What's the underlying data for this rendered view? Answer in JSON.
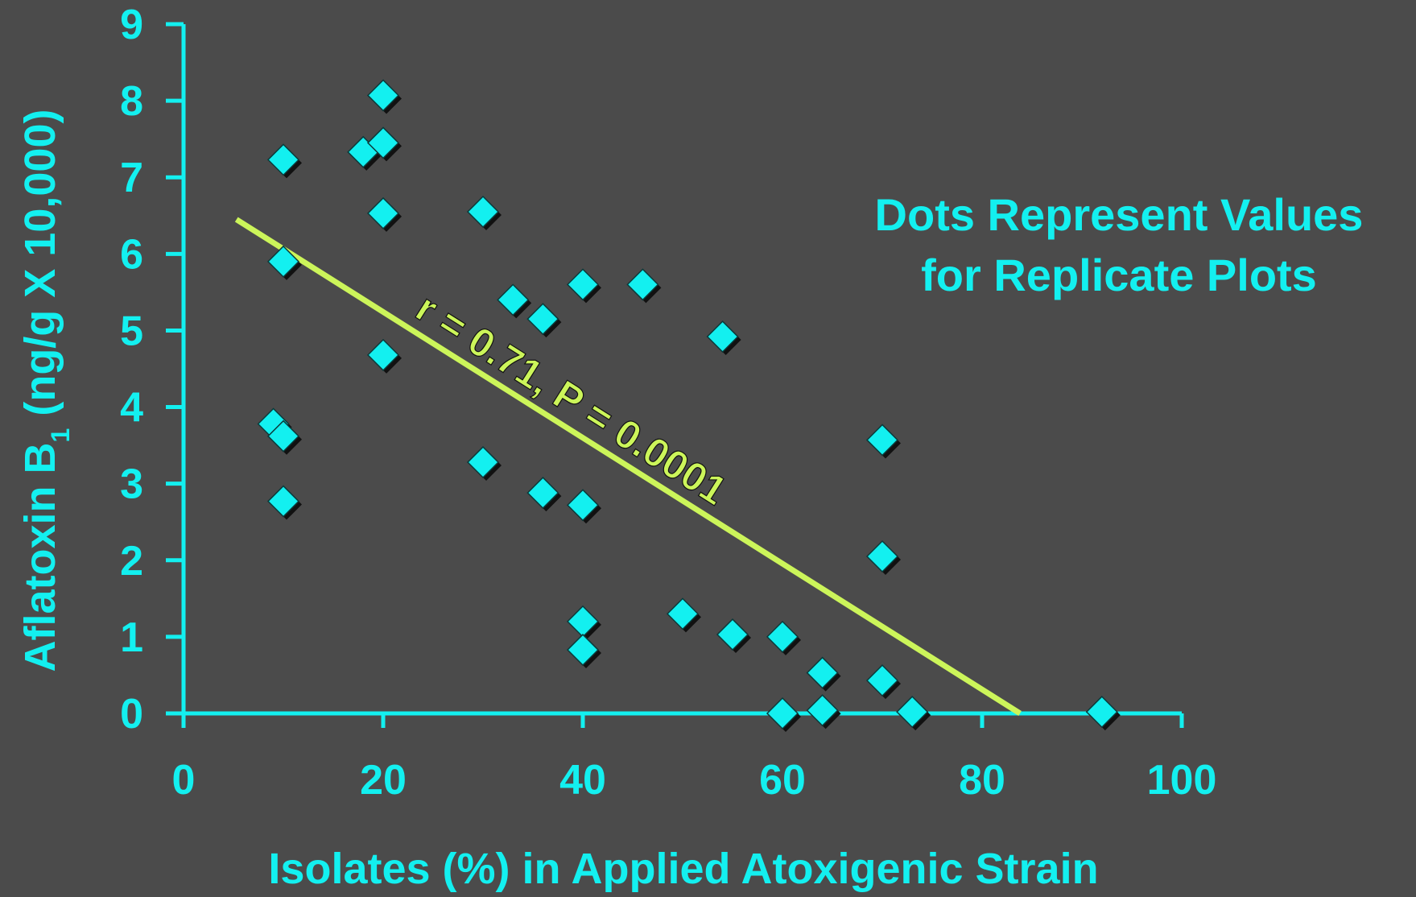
{
  "colors": {
    "background": "#4b4b4b",
    "accent": "#13f0f0",
    "trend": "#ccf55a",
    "shadow": "#111111"
  },
  "chart_data": {
    "type": "scatter",
    "title": "",
    "xlabel": "Isolates (%) in Applied Atoxigenic Strain",
    "ylabel": {
      "prefix": "Aflatoxin B",
      "subscript": "1",
      "suffix": " (ng/g X 10,000)"
    },
    "xlim": [
      0,
      100
    ],
    "ylim": [
      0,
      9
    ],
    "x_ticks": [
      0,
      20,
      40,
      60,
      80,
      100
    ],
    "y_ticks": [
      0,
      1,
      2,
      3,
      4,
      5,
      6,
      7,
      8,
      9
    ],
    "grid": false,
    "legend": "none",
    "marker": "diamond",
    "points": [
      {
        "x": 10,
        "y": 7.23
      },
      {
        "x": 10,
        "y": 5.9
      },
      {
        "x": 9,
        "y": 3.78
      },
      {
        "x": 10,
        "y": 3.62
      },
      {
        "x": 10,
        "y": 2.77
      },
      {
        "x": 18,
        "y": 7.33
      },
      {
        "x": 20,
        "y": 8.07
      },
      {
        "x": 20,
        "y": 7.45
      },
      {
        "x": 20,
        "y": 6.53
      },
      {
        "x": 20,
        "y": 4.68
      },
      {
        "x": 30,
        "y": 6.55
      },
      {
        "x": 30,
        "y": 3.28
      },
      {
        "x": 33,
        "y": 5.4
      },
      {
        "x": 36,
        "y": 5.15
      },
      {
        "x": 36,
        "y": 2.88
      },
      {
        "x": 40,
        "y": 5.6
      },
      {
        "x": 40,
        "y": 2.72
      },
      {
        "x": 40,
        "y": 1.2
      },
      {
        "x": 40,
        "y": 0.83
      },
      {
        "x": 46,
        "y": 5.6
      },
      {
        "x": 50,
        "y": 1.3
      },
      {
        "x": 54,
        "y": 4.92
      },
      {
        "x": 55,
        "y": 1.03
      },
      {
        "x": 60,
        "y": 1.0
      },
      {
        "x": 60,
        "y": 0.0
      },
      {
        "x": 64,
        "y": 0.53
      },
      {
        "x": 64,
        "y": 0.04
      },
      {
        "x": 70,
        "y": 3.57
      },
      {
        "x": 70,
        "y": 2.05
      },
      {
        "x": 70,
        "y": 0.43
      },
      {
        "x": 73,
        "y": 0.02
      },
      {
        "x": 92,
        "y": 0.02
      }
    ],
    "trendline": {
      "x": [
        5.3,
        83.8
      ],
      "y": [
        6.45,
        0.0
      ]
    },
    "annotations": {
      "correlation": "r = 0.71, P = 0.0001",
      "note_line1": "Dots Represent Values",
      "note_line2": "for Replicate Plots"
    }
  }
}
